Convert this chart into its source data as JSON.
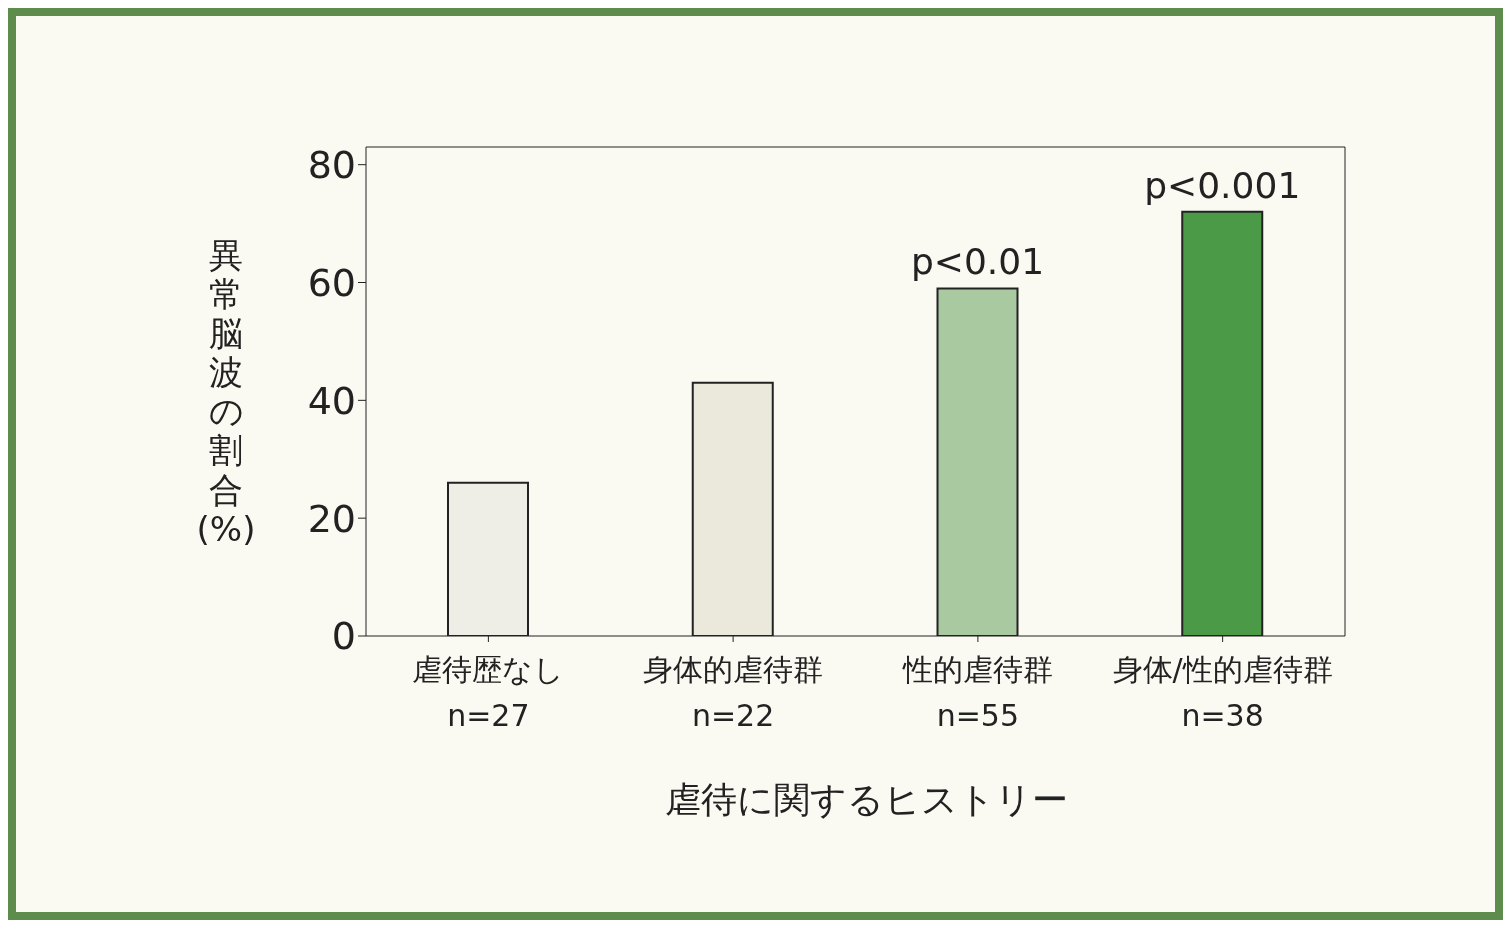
{
  "chart_data": {
    "type": "bar",
    "xlabel": "虐待に関するヒストリー",
    "ylabel": "異常脳波の割合(%)",
    "categories": [
      "虐待歴なし\nn=27",
      "身体的虐待群\nn=22",
      "性的虐待群\nn=55",
      "身体/性的虐待群\nn=38"
    ],
    "values": [
      26,
      43,
      59,
      72
    ],
    "colors": [
      "#eeede6",
      "#ebe9dc",
      "#a9c9a0",
      "#4a9a48"
    ],
    "ylim": [
      0,
      83
    ],
    "yticks": [
      0,
      20,
      40,
      60,
      80
    ],
    "grid": false,
    "legend": false,
    "annotations": [
      {
        "text": "p<0.01",
        "x": "性的虐待群\nn=55",
        "y": 59
      },
      {
        "text": "p<0.001",
        "x": "身体/性的虐待群\nn=38",
        "y": 72
      }
    ]
  }
}
